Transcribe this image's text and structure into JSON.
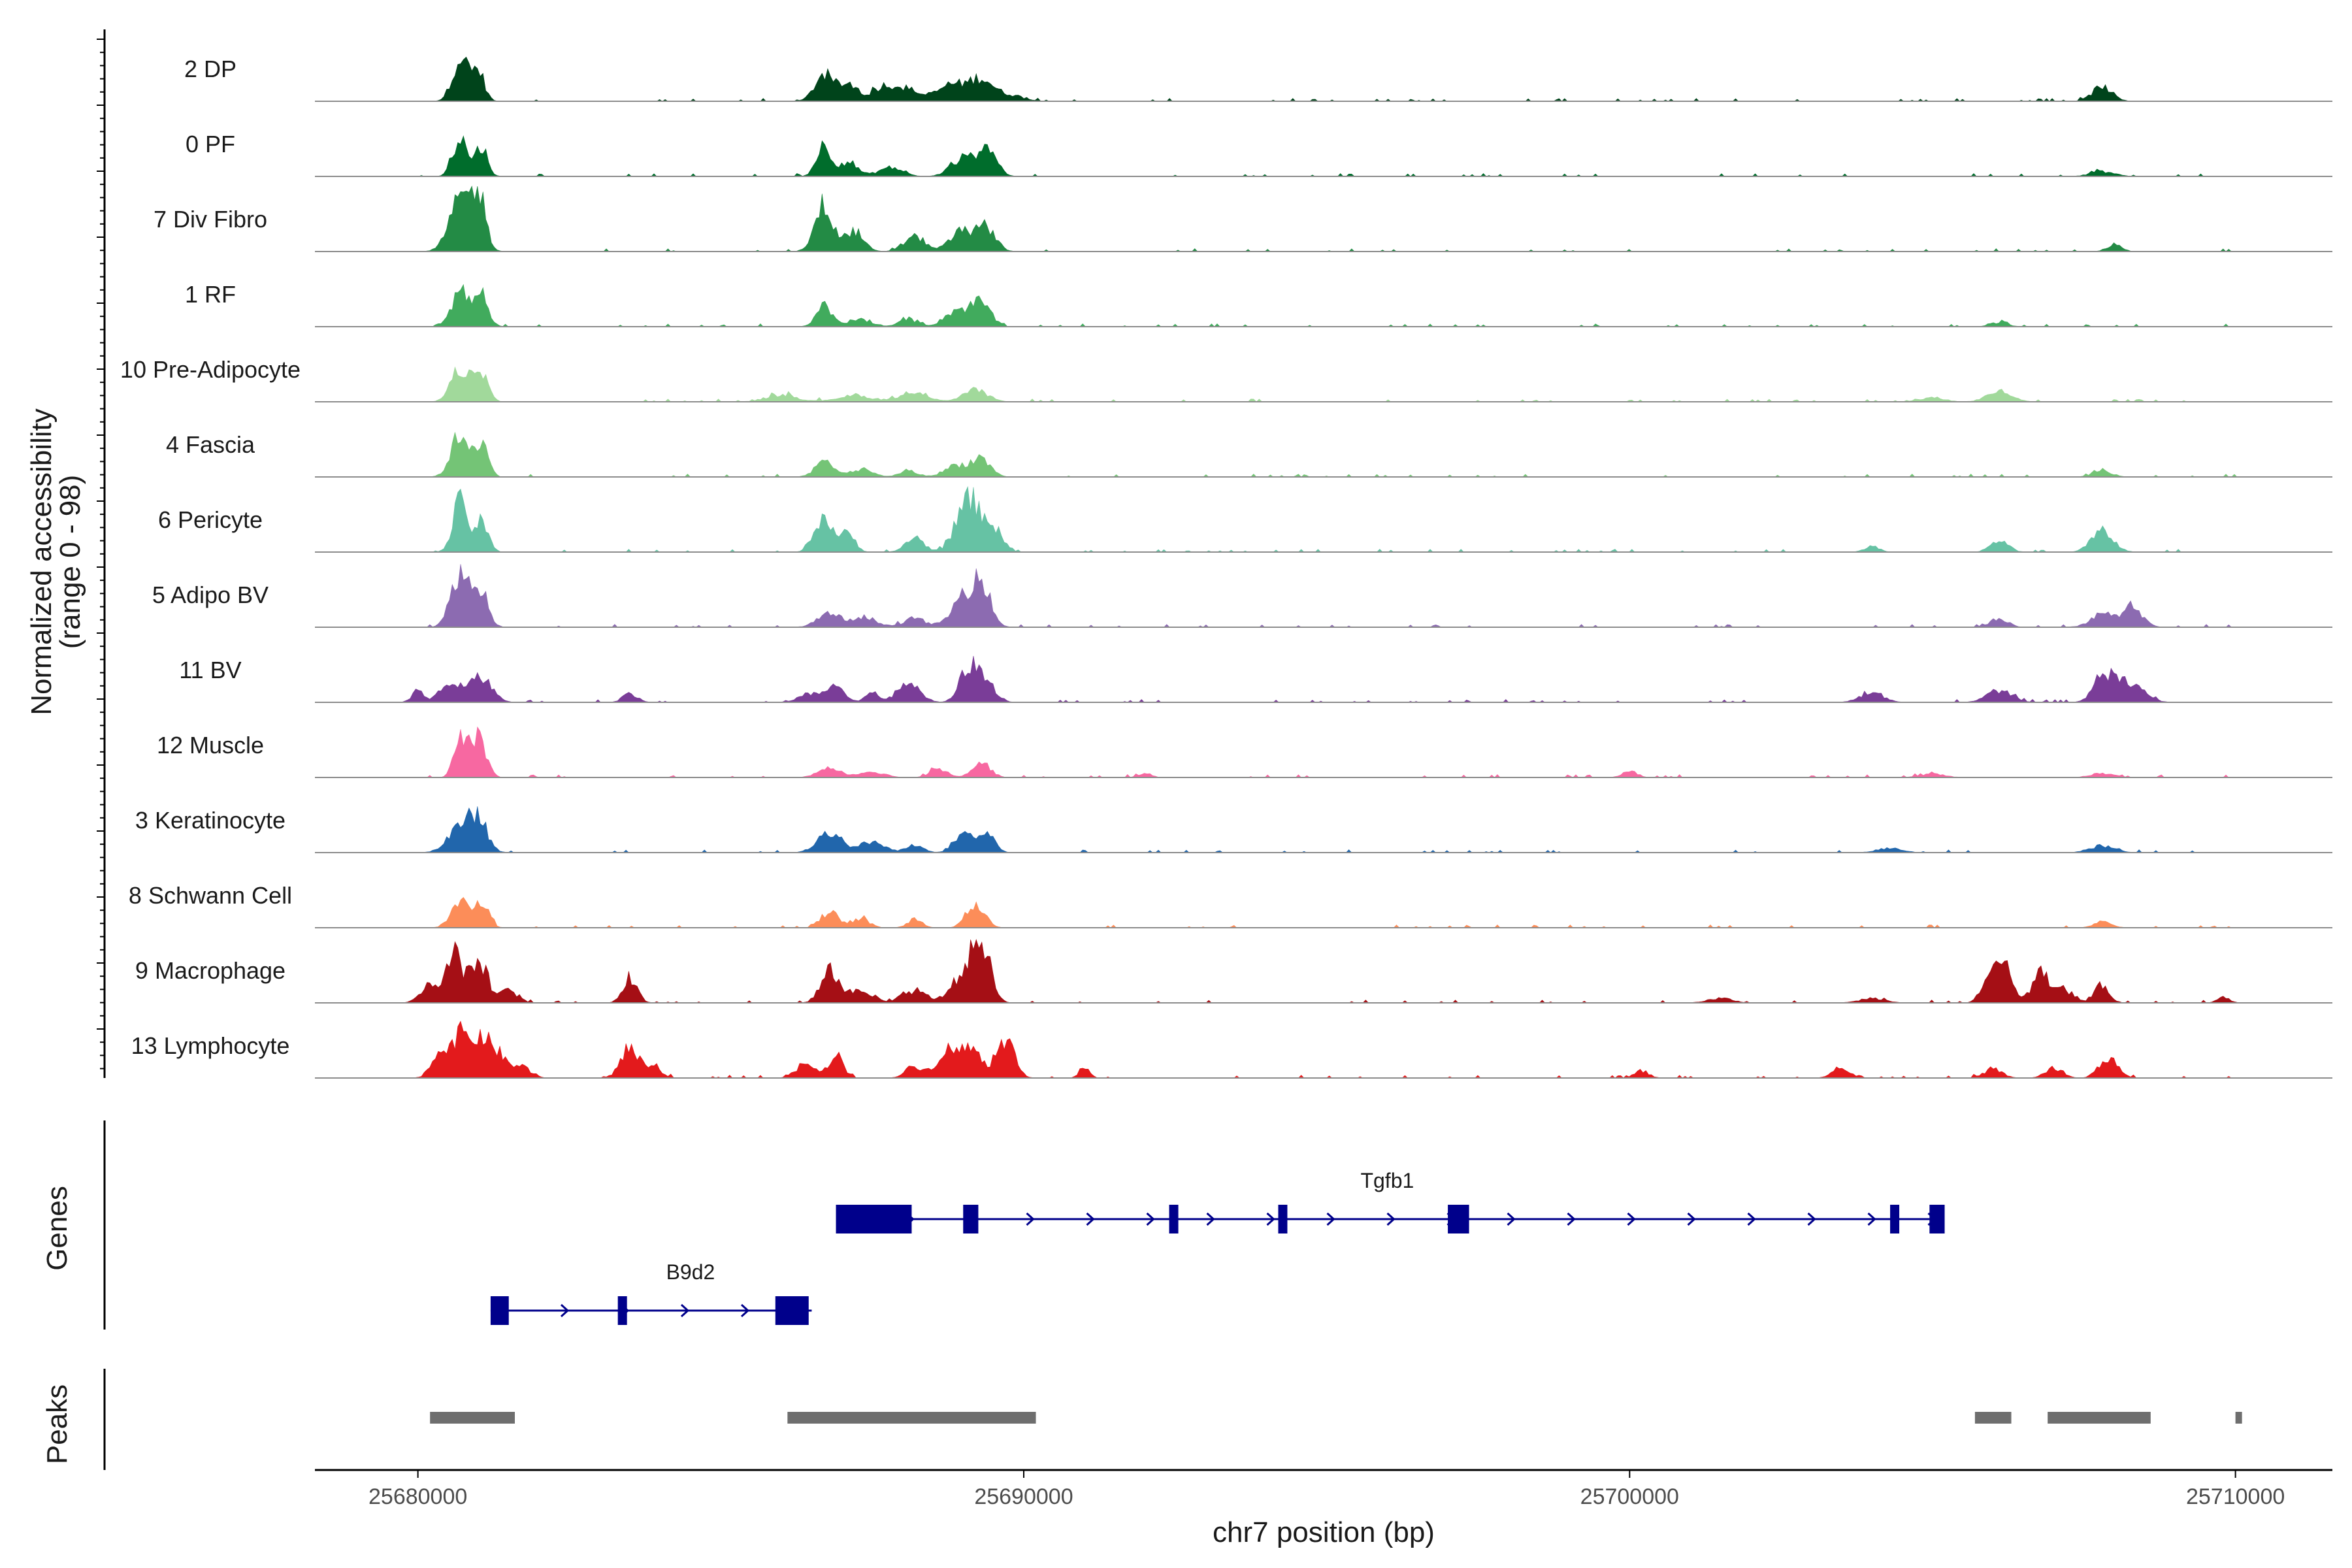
{
  "chart_data": {
    "type": "area",
    "title": "",
    "ylabel": "Normalized accessibility",
    "ylabel_range": "(range 0 - 98)",
    "xlabel": "chr7 position (bp)",
    "xlim": [
      25678300,
      25711600
    ],
    "ylim": [
      0,
      98
    ],
    "x_ticks": [
      25680000,
      25690000,
      25700000,
      25710000
    ],
    "x_tick_labels": [
      "25680000",
      "25690000",
      "25700000",
      "25710000"
    ],
    "tracks": [
      {
        "label": "2 DP",
        "color": "#00441b",
        "peaks": [
          [
            25680700,
            0.75,
            130
          ],
          [
            25681000,
            0.5,
            100
          ],
          [
            25686700,
            0.45,
            150
          ],
          [
            25687100,
            0.3,
            150
          ],
          [
            25687700,
            0.25,
            200
          ],
          [
            25688100,
            0.18,
            200
          ],
          [
            25688800,
            0.28,
            220
          ],
          [
            25689300,
            0.38,
            200
          ],
          [
            25689800,
            0.1,
            200
          ],
          [
            25707800,
            0.25,
            160
          ]
        ]
      },
      {
        "label": "0 PF",
        "color": "#006d2c",
        "peaks": [
          [
            25680700,
            0.65,
            120
          ],
          [
            25681050,
            0.5,
            100
          ],
          [
            25686700,
            0.52,
            120
          ],
          [
            25687100,
            0.25,
            150
          ],
          [
            25687800,
            0.15,
            200
          ],
          [
            25689000,
            0.3,
            200
          ],
          [
            25689400,
            0.5,
            150
          ],
          [
            25707800,
            0.08,
            200
          ]
        ]
      },
      {
        "label": "7 Div Fibro",
        "color": "#238b45",
        "peaks": [
          [
            25680700,
            0.85,
            180
          ],
          [
            25681000,
            0.9,
            120
          ],
          [
            25686700,
            0.8,
            150
          ],
          [
            25687200,
            0.35,
            150
          ],
          [
            25688200,
            0.25,
            180
          ],
          [
            25689000,
            0.35,
            200
          ],
          [
            25689400,
            0.38,
            150
          ],
          [
            25708000,
            0.12,
            120
          ]
        ]
      },
      {
        "label": "1 RF",
        "color": "#41ab5d",
        "peaks": [
          [
            25680700,
            0.6,
            140
          ],
          [
            25681050,
            0.55,
            110
          ],
          [
            25686700,
            0.35,
            130
          ],
          [
            25687300,
            0.12,
            200
          ],
          [
            25688100,
            0.12,
            150
          ],
          [
            25688900,
            0.28,
            200
          ],
          [
            25689300,
            0.38,
            160
          ],
          [
            25706100,
            0.07,
            150
          ]
        ]
      },
      {
        "label": "10 Pre-Adipocyte",
        "color": "#a1d99b",
        "peaks": [
          [
            25680700,
            0.55,
            150
          ],
          [
            25681050,
            0.5,
            110
          ],
          [
            25686000,
            0.12,
            250
          ],
          [
            25687200,
            0.1,
            300
          ],
          [
            25688200,
            0.14,
            250
          ],
          [
            25689200,
            0.2,
            200
          ],
          [
            25706100,
            0.18,
            200
          ],
          [
            25705000,
            0.07,
            200
          ]
        ]
      },
      {
        "label": "4 Fascia",
        "color": "#74c476",
        "peaks": [
          [
            25680700,
            0.72,
            150
          ],
          [
            25681050,
            0.55,
            110
          ],
          [
            25686700,
            0.25,
            150
          ],
          [
            25687300,
            0.12,
            200
          ],
          [
            25688100,
            0.1,
            150
          ],
          [
            25688900,
            0.2,
            200
          ],
          [
            25689300,
            0.3,
            150
          ],
          [
            25707800,
            0.12,
            150
          ]
        ]
      },
      {
        "label": "6 Pericyte",
        "color": "#66c2a4",
        "peaks": [
          [
            25680700,
            0.85,
            120
          ],
          [
            25681050,
            0.5,
            110
          ],
          [
            25686700,
            0.6,
            150
          ],
          [
            25687100,
            0.3,
            120
          ],
          [
            25688200,
            0.25,
            150
          ],
          [
            25689100,
            0.9,
            200
          ],
          [
            25689500,
            0.35,
            150
          ],
          [
            25704000,
            0.1,
            120
          ],
          [
            25706100,
            0.18,
            150
          ],
          [
            25707800,
            0.35,
            180
          ]
        ]
      },
      {
        "label": "5 Adipo BV",
        "color": "#8c6bb1",
        "peaks": [
          [
            25680700,
            0.95,
            150
          ],
          [
            25681050,
            0.6,
            120
          ],
          [
            25686800,
            0.22,
            200
          ],
          [
            25687400,
            0.15,
            200
          ],
          [
            25688200,
            0.15,
            180
          ],
          [
            25689000,
            0.45,
            200
          ],
          [
            25689300,
            0.7,
            150
          ],
          [
            25706100,
            0.15,
            150
          ],
          [
            25707800,
            0.2,
            200
          ],
          [
            25708300,
            0.35,
            160
          ]
        ]
      },
      {
        "label": "11 BV",
        "color": "#7a3d98",
        "peaks": [
          [
            25680000,
            0.2,
            100
          ],
          [
            25680500,
            0.3,
            150
          ],
          [
            25681000,
            0.4,
            200
          ],
          [
            25683500,
            0.15,
            120
          ],
          [
            25686500,
            0.15,
            200
          ],
          [
            25686900,
            0.25,
            150
          ],
          [
            25687500,
            0.2,
            100
          ],
          [
            25688100,
            0.35,
            180
          ],
          [
            25689100,
            0.6,
            150
          ],
          [
            25689400,
            0.3,
            150
          ],
          [
            25704000,
            0.15,
            200
          ],
          [
            25706100,
            0.2,
            200
          ],
          [
            25707800,
            0.4,
            150
          ],
          [
            25708200,
            0.35,
            250
          ]
        ]
      },
      {
        "label": "12 Muscle",
        "color": "#f768a1",
        "peaks": [
          [
            25680700,
            0.7,
            100
          ],
          [
            25681000,
            0.75,
            120
          ],
          [
            25686800,
            0.15,
            200
          ],
          [
            25687500,
            0.1,
            200
          ],
          [
            25688600,
            0.15,
            150
          ],
          [
            25689300,
            0.25,
            150
          ],
          [
            25692000,
            0.08,
            100
          ],
          [
            25700000,
            0.12,
            120
          ],
          [
            25705000,
            0.06,
            200
          ],
          [
            25707800,
            0.07,
            200
          ]
        ]
      },
      {
        "label": "3 Keratinocyte",
        "color": "#2166ac",
        "peaks": [
          [
            25680700,
            0.45,
            200
          ],
          [
            25681000,
            0.5,
            150
          ],
          [
            25686800,
            0.35,
            200
          ],
          [
            25687500,
            0.18,
            200
          ],
          [
            25688200,
            0.12,
            150
          ],
          [
            25689000,
            0.35,
            150
          ],
          [
            25689400,
            0.35,
            120
          ],
          [
            25704300,
            0.08,
            200
          ],
          [
            25707800,
            0.12,
            200
          ]
        ]
      },
      {
        "label": "8 Schwann Cell",
        "color": "#fc8d59",
        "peaks": [
          [
            25680700,
            0.45,
            150
          ],
          [
            25681050,
            0.4,
            120
          ],
          [
            25686800,
            0.25,
            150
          ],
          [
            25687300,
            0.15,
            150
          ],
          [
            25688200,
            0.15,
            120
          ],
          [
            25689200,
            0.4,
            150
          ],
          [
            25707800,
            0.1,
            150
          ]
        ]
      },
      {
        "label": "9 Macrophage",
        "color": "#a50f15",
        "peaks": [
          [
            25680200,
            0.3,
            150
          ],
          [
            25680600,
            0.85,
            120
          ],
          [
            25681000,
            0.7,
            150
          ],
          [
            25681500,
            0.2,
            150
          ],
          [
            25683500,
            0.4,
            120
          ],
          [
            25686800,
            0.55,
            150
          ],
          [
            25687300,
            0.2,
            200
          ],
          [
            25688200,
            0.2,
            200
          ],
          [
            25689000,
            0.45,
            200
          ],
          [
            25689300,
            0.95,
            150
          ],
          [
            25701500,
            0.08,
            200
          ],
          [
            25704000,
            0.08,
            200
          ],
          [
            25706100,
            0.75,
            180
          ],
          [
            25706800,
            0.5,
            150
          ],
          [
            25707200,
            0.2,
            150
          ],
          [
            25707800,
            0.3,
            120
          ],
          [
            25709800,
            0.1,
            100
          ]
        ]
      },
      {
        "label": "13 Lymphocyte",
        "color": "#e31a1c",
        "peaks": [
          [
            25680400,
            0.5,
            150
          ],
          [
            25680700,
            0.6,
            120
          ],
          [
            25681000,
            0.65,
            150
          ],
          [
            25681300,
            0.4,
            150
          ],
          [
            25681700,
            0.2,
            150
          ],
          [
            25683500,
            0.5,
            150
          ],
          [
            25683900,
            0.2,
            120
          ],
          [
            25686400,
            0.25,
            150
          ],
          [
            25686900,
            0.4,
            120
          ],
          [
            25688200,
            0.2,
            150
          ],
          [
            25688700,
            0.4,
            150
          ],
          [
            25689100,
            0.5,
            200
          ],
          [
            25689700,
            0.6,
            150
          ],
          [
            25691000,
            0.2,
            80
          ],
          [
            25700200,
            0.12,
            120
          ],
          [
            25703500,
            0.15,
            150
          ],
          [
            25706000,
            0.15,
            150
          ],
          [
            25707000,
            0.15,
            150
          ],
          [
            25707900,
            0.35,
            150
          ]
        ]
      }
    ],
    "genes": [
      {
        "name": "Tgfb1",
        "strand": "+",
        "start": 25686900,
        "end": 25705200,
        "row": 0,
        "exons": [
          [
            25686900,
            25688150
          ],
          [
            25689000,
            25689250
          ],
          [
            25692400,
            25692550
          ],
          [
            25694200,
            25694300
          ],
          [
            25697000,
            25697350
          ],
          [
            25704300,
            25704450
          ],
          [
            25704950,
            25705200
          ]
        ]
      },
      {
        "name": "B9d2",
        "strand": "+",
        "start": 25681200,
        "end": 25686500,
        "row": 1,
        "exons": [
          [
            25681200,
            25681500
          ],
          [
            25683300,
            25683400
          ],
          [
            25685900,
            25686450
          ]
        ]
      }
    ],
    "genes_axis_label": "Genes",
    "peaks": [
      [
        25680200,
        25681600
      ],
      [
        25686100,
        25690200
      ],
      [
        25705700,
        25706300
      ],
      [
        25706900,
        25708600
      ],
      [
        25710000,
        25710100
      ]
    ],
    "peaks_axis_label": "Peaks"
  }
}
